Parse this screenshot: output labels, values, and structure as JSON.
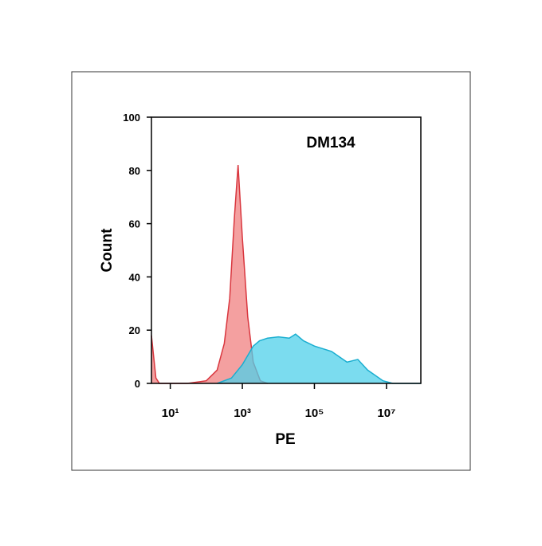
{
  "chart_data": {
    "type": "area",
    "title": "DM134",
    "xlabel": "PE",
    "ylabel": "Count",
    "xscale": "log",
    "xlim": [
      3,
      90000000
    ],
    "ylim": [
      0,
      100
    ],
    "xticks": [
      {
        "value": 10,
        "label": "10¹"
      },
      {
        "value": 1000,
        "label": "10³"
      },
      {
        "value": 100000,
        "label": "10⁵"
      },
      {
        "value": 10000000,
        "label": "10⁷"
      }
    ],
    "yticks": [
      0,
      20,
      40,
      60,
      80,
      100
    ],
    "series": [
      {
        "color": "#f08080",
        "line_color": "#d9363e",
        "x": [
          3,
          4,
          5,
          30,
          100,
          200,
          316,
          447,
          600,
          760,
          1000,
          1410,
          2000,
          3160,
          5000
        ],
        "values": [
          18,
          2,
          0,
          0,
          1,
          5,
          15,
          32,
          62,
          82,
          55,
          25,
          8,
          1,
          0
        ]
      },
      {
        "color": "#4fd0ea",
        "line_color": "#1aaed0",
        "x": [
          200,
          500,
          1000,
          2000,
          3000,
          5000,
          10000,
          20000,
          30000,
          50000,
          100000,
          300000,
          800000,
          1600000,
          3000000,
          8000000,
          15000000,
          50000000,
          90000000
        ],
        "values": [
          0,
          2,
          7,
          14,
          16,
          17,
          17.5,
          17,
          18.5,
          16,
          14,
          12,
          8,
          9,
          5,
          1,
          0,
          0,
          0
        ]
      }
    ]
  }
}
